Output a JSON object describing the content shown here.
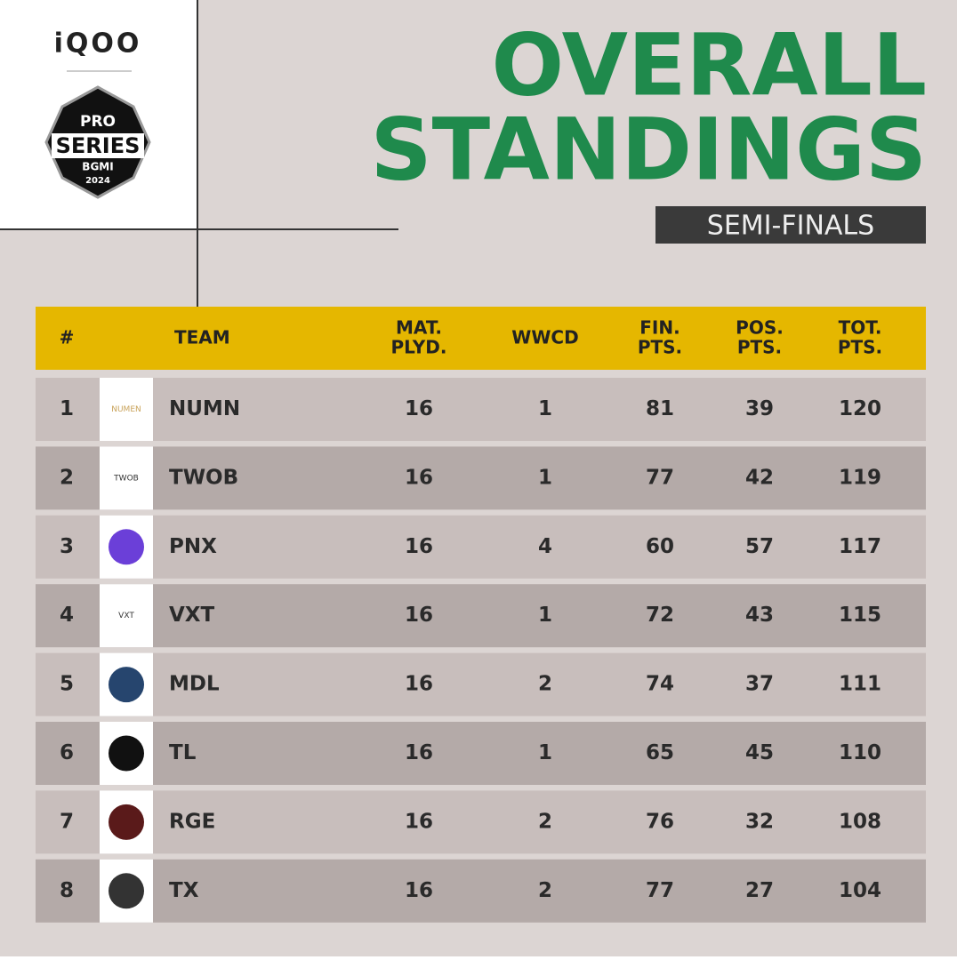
{
  "brand": "iQOO",
  "event_logo": {
    "line1": "PRO",
    "line2": "SERIES",
    "line3": "BGMI",
    "line4": "2024"
  },
  "header": {
    "title_lines": [
      "OVERALL",
      "STANDINGS"
    ],
    "subtitle": "SEMI-FINALS"
  },
  "table": {
    "columns": [
      [
        "#"
      ],
      [
        "TEAM"
      ],
      [
        "MAT.",
        "PLYD."
      ],
      [
        "WWCD"
      ],
      [
        "FIN.",
        "PTS."
      ],
      [
        "POS.",
        "PTS."
      ],
      [
        "TOT.",
        "PTS."
      ]
    ],
    "rows": [
      [
        1,
        "NUMN",
        16,
        1,
        81,
        39,
        120
      ],
      [
        2,
        "TWOB",
        16,
        1,
        77,
        42,
        119
      ],
      [
        3,
        "PNX",
        16,
        4,
        60,
        57,
        117
      ],
      [
        4,
        "VXT",
        16,
        1,
        72,
        43,
        115
      ],
      [
        5,
        "MDL",
        16,
        2,
        74,
        37,
        111
      ],
      [
        6,
        "TL",
        16,
        1,
        65,
        45,
        110
      ],
      [
        7,
        "RGE",
        16,
        2,
        76,
        32,
        108
      ],
      [
        8,
        "TX",
        16,
        2,
        77,
        27,
        104
      ]
    ],
    "logo_texts": [
      "NUMEN",
      "TWOB",
      null,
      "VXT",
      null,
      null,
      null,
      null
    ]
  }
}
